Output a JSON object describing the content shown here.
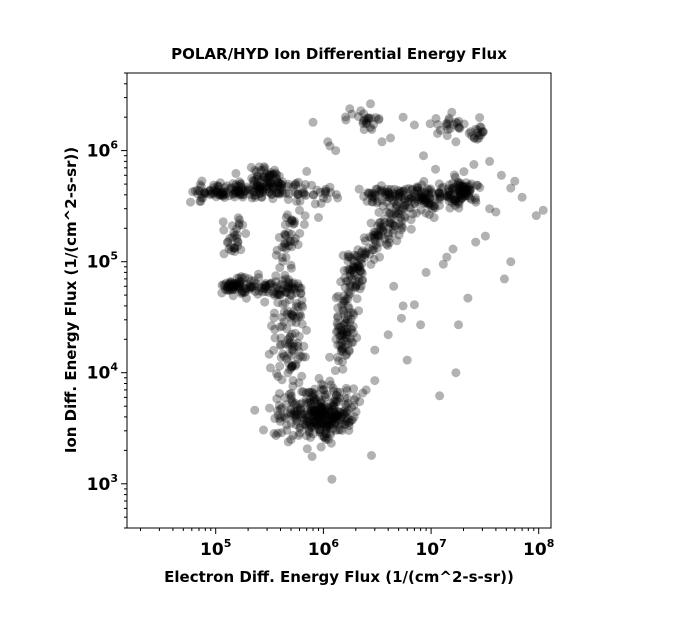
{
  "chart_data": {
    "type": "scatter",
    "title": "POLAR/HYD  Ion Differential Energy Flux",
    "xlabel": "Electron Diff. Energy Flux (1/(cm^2-s-sr))",
    "ylabel": "Ion Diff. Energy Flux (1/(cm^2-s-sr))",
    "xscale": "log",
    "yscale": "log",
    "xlim": [
      15000,
      130000000
    ],
    "ylim": [
      400,
      5000000
    ],
    "x_ticks": [
      {
        "base": "10",
        "exp": "5",
        "value": 100000
      },
      {
        "base": "10",
        "exp": "6",
        "value": 1000000
      },
      {
        "base": "10",
        "exp": "7",
        "value": 10000000
      },
      {
        "base": "10",
        "exp": "8",
        "value": 100000000
      }
    ],
    "y_ticks": [
      {
        "base": "10",
        "exp": "3",
        "value": 1000
      },
      {
        "base": "10",
        "exp": "4",
        "value": 10000
      },
      {
        "base": "10",
        "exp": "5",
        "value": 100000
      },
      {
        "base": "10",
        "exp": "6",
        "value": 1000000
      }
    ],
    "grid": false,
    "legend": "none",
    "marker_color": "#000000",
    "marker_alpha": 0.3,
    "clusters": [
      {
        "shape": "line",
        "from": [
          65000,
          430000
        ],
        "to": [
          420000,
          450000
        ],
        "n": 160,
        "spread": 0.04
      },
      {
        "shape": "line",
        "from": [
          240000,
          610000
        ],
        "to": [
          380000,
          560000
        ],
        "n": 40,
        "spread": 0.04
      },
      {
        "shape": "line",
        "from": [
          420000,
          430000
        ],
        "to": [
          1200000,
          420000
        ],
        "n": 40,
        "spread": 0.05
      },
      {
        "shape": "line",
        "from": [
          2500000,
          410000
        ],
        "to": [
          9000000,
          400000
        ],
        "n": 90,
        "spread": 0.04
      },
      {
        "shape": "line",
        "from": [
          9000000,
          360000
        ],
        "to": [
          22000000,
          450000
        ],
        "n": 60,
        "spread": 0.06
      },
      {
        "shape": "line",
        "from": [
          4500000,
          270000
        ],
        "to": [
          21000000,
          450000
        ],
        "n": 60,
        "spread": 0.06
      },
      {
        "shape": "line",
        "from": [
          1800000,
          90000
        ],
        "to": [
          5000000,
          280000
        ],
        "n": 110,
        "spread": 0.07
      },
      {
        "shape": "line",
        "from": [
          1450000,
          12000
        ],
        "to": [
          1900000,
          90000
        ],
        "n": 120,
        "spread": 0.05
      },
      {
        "shape": "line",
        "from": [
          150000,
          60000
        ],
        "to": [
          550000,
          58000
        ],
        "n": 70,
        "spread": 0.05
      },
      {
        "shape": "line",
        "from": [
          140000,
          130000
        ],
        "to": [
          160000,
          250000
        ],
        "n": 30,
        "spread": 0.05
      },
      {
        "shape": "line",
        "from": [
          480000,
          65000
        ],
        "to": [
          470000,
          9000
        ],
        "n": 110,
        "spread": 0.08
      },
      {
        "shape": "line",
        "from": [
          550000,
          240000
        ],
        "to": [
          420000,
          100000
        ],
        "n": 40,
        "spread": 0.06
      },
      {
        "shape": "line",
        "from": [
          10000000,
          1900000
        ],
        "to": [
          30000000,
          1400000
        ],
        "n": 40,
        "spread": 0.04
      },
      {
        "shape": "line",
        "from": [
          1800000,
          2400000
        ],
        "to": [
          2900000,
          1800000
        ],
        "n": 25,
        "spread": 0.05
      },
      {
        "shape": "blob",
        "center": [
          900000,
          4200
        ],
        "sx": 0.17,
        "sy": 0.12,
        "n": 320
      },
      {
        "shape": "blob",
        "center": [
          150000,
          60000
        ],
        "sx": 0.06,
        "sy": 0.04,
        "n": 50
      },
      {
        "shape": "blob",
        "center": [
          20000000,
          430000
        ],
        "sx": 0.06,
        "sy": 0.05,
        "n": 40
      }
    ],
    "scatter_points": [
      [
        800000,
        1800000
      ],
      [
        1100000,
        1200000
      ],
      [
        1300000,
        1000000
      ],
      [
        3500000,
        1200000
      ],
      [
        5500000,
        2000000
      ],
      [
        7000000,
        1700000
      ],
      [
        4200000,
        1300000
      ],
      [
        8500000,
        900000
      ],
      [
        17000000,
        1200000
      ],
      [
        25000000,
        750000
      ],
      [
        35000000,
        800000
      ],
      [
        45000000,
        600000
      ],
      [
        55000000,
        460000
      ],
      [
        70000000,
        380000
      ],
      [
        110000000,
        290000
      ],
      [
        95000000,
        260000
      ],
      [
        40000000,
        280000
      ],
      [
        32000000,
        170000
      ],
      [
        55000000,
        100000
      ],
      [
        48000000,
        70000
      ],
      [
        22000000,
        47000
      ],
      [
        18000000,
        27000
      ],
      [
        17000000,
        10000
      ],
      [
        12000000,
        6200
      ],
      [
        7000000,
        41000
      ],
      [
        8000000,
        27000
      ],
      [
        5500000,
        40000
      ],
      [
        4000000,
        22000
      ],
      [
        3000000,
        16000
      ],
      [
        3000000,
        8500
      ],
      [
        2500000,
        7000
      ],
      [
        2800000,
        1800
      ],
      [
        1200000,
        1100
      ],
      [
        500000,
        2500
      ],
      [
        230000,
        4600
      ],
      [
        6000000,
        13000
      ],
      [
        9000000,
        80000
      ],
      [
        13000000,
        95000
      ],
      [
        16000000,
        130000
      ],
      [
        26000000,
        150000
      ],
      [
        14000000,
        110000
      ],
      [
        4500000,
        60000
      ],
      [
        5300000,
        31000
      ],
      [
        35000000,
        300000
      ],
      [
        60000000,
        530000
      ],
      [
        11000000,
        680000
      ],
      [
        600000,
        290000
      ],
      [
        900000,
        250000
      ],
      [
        700000,
        650000
      ],
      [
        1150000,
        1100000
      ]
    ]
  }
}
